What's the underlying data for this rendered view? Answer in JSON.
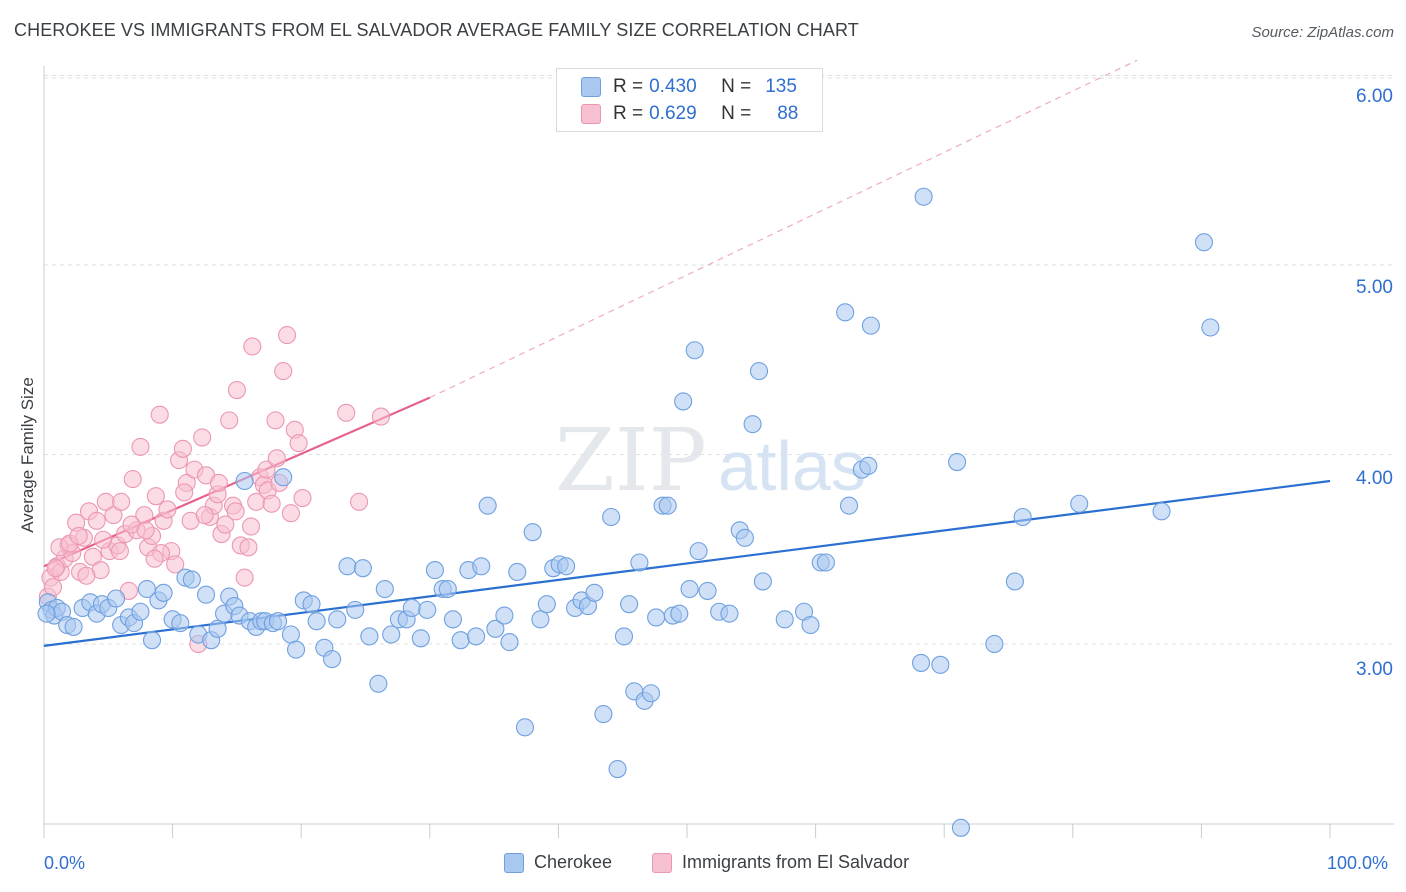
{
  "header": {
    "title": "CHEROKEE VS IMMIGRANTS FROM EL SALVADOR AVERAGE FAMILY SIZE CORRELATION CHART",
    "source": "Source: ZipAtlas.com"
  },
  "watermark": {
    "zip": "ZIP",
    "atlas": "atlas"
  },
  "legend_top": {
    "rows": [
      {
        "r_label": "R =",
        "r_value": "0.430",
        "n_label": "N =",
        "n_value": "135"
      },
      {
        "r_label": "R =",
        "r_value": "0.629",
        "n_label": "N =",
        "n_value": "88"
      }
    ]
  },
  "chart_data": {
    "type": "scatter",
    "title": "CHEROKEE VS IMMIGRANTS FROM EL SALVADOR AVERAGE FAMILY SIZE CORRELATION CHART",
    "xlabel": "",
    "ylabel": "Average Family Size",
    "xlim": [
      0,
      100
    ],
    "ylim": [
      2.05,
      6.05
    ],
    "x_tick_labels": [
      "0.0%",
      "100.0%"
    ],
    "y_ticks": [
      3.0,
      4.0,
      5.0,
      6.0
    ],
    "y_tick_labels": [
      "3.00",
      "4.00",
      "5.00",
      "6.00"
    ],
    "grid": true,
    "legend_position": "bottom",
    "colors": {
      "cherokee_fill": "#a9c8f0",
      "cherokee_stroke": "#6fa0e0",
      "cherokee_line": "#2a6fd1",
      "salvador_fill": "#f7c0d0",
      "salvador_stroke": "#ec97b2",
      "salvador_line": "#e6628c",
      "tick_text": "#2f6fcf",
      "grid": "#dcdfe3"
    },
    "series": [
      {
        "name": "Cherokee",
        "r": 0.43,
        "n": 135,
        "trend": {
          "x": [
            0,
            100
          ],
          "y": [
            2.99,
            3.86
          ]
        },
        "points": [
          [
            0.3,
            3.22
          ],
          [
            0.6,
            3.18
          ],
          [
            0.8,
            3.15
          ],
          [
            1.0,
            3.19
          ],
          [
            1.4,
            3.17
          ],
          [
            1.8,
            3.1
          ],
          [
            2.3,
            3.09
          ],
          [
            3.0,
            3.19
          ],
          [
            3.6,
            3.22
          ],
          [
            4.1,
            3.16
          ],
          [
            4.5,
            3.21
          ],
          [
            5.0,
            3.19
          ],
          [
            5.6,
            3.24
          ],
          [
            6.0,
            3.1
          ],
          [
            6.6,
            3.14
          ],
          [
            7.0,
            3.11
          ],
          [
            7.5,
            3.17
          ],
          [
            8.0,
            3.29
          ],
          [
            8.4,
            3.02
          ],
          [
            8.9,
            3.23
          ],
          [
            9.3,
            3.27
          ],
          [
            10.0,
            3.13
          ],
          [
            10.6,
            3.11
          ],
          [
            11.0,
            3.35
          ],
          [
            11.5,
            3.34
          ],
          [
            12.0,
            3.05
          ],
          [
            12.6,
            3.26
          ],
          [
            13.0,
            3.02
          ],
          [
            13.5,
            3.08
          ],
          [
            14.0,
            3.16
          ],
          [
            14.4,
            3.25
          ],
          [
            14.8,
            3.2
          ],
          [
            15.2,
            3.15
          ],
          [
            15.6,
            3.86
          ],
          [
            16.0,
            3.12
          ],
          [
            16.5,
            3.09
          ],
          [
            16.9,
            3.12
          ],
          [
            17.2,
            3.12
          ],
          [
            17.8,
            3.11
          ],
          [
            18.2,
            3.12
          ],
          [
            18.6,
            3.88
          ],
          [
            19.2,
            3.05
          ],
          [
            19.6,
            2.97
          ],
          [
            20.2,
            3.23
          ],
          [
            20.8,
            3.21
          ],
          [
            21.2,
            3.12
          ],
          [
            21.8,
            2.98
          ],
          [
            22.4,
            2.92
          ],
          [
            22.8,
            3.13
          ],
          [
            23.6,
            3.41
          ],
          [
            24.2,
            3.18
          ],
          [
            24.8,
            3.4
          ],
          [
            25.3,
            3.04
          ],
          [
            26.0,
            2.79
          ],
          [
            26.5,
            3.29
          ],
          [
            27.0,
            3.05
          ],
          [
            27.6,
            3.13
          ],
          [
            28.2,
            3.13
          ],
          [
            28.6,
            3.19
          ],
          [
            29.3,
            3.03
          ],
          [
            29.8,
            3.18
          ],
          [
            30.4,
            3.39
          ],
          [
            31.0,
            3.29
          ],
          [
            31.4,
            3.29
          ],
          [
            31.8,
            3.13
          ],
          [
            32.4,
            3.02
          ],
          [
            33.0,
            3.39
          ],
          [
            33.6,
            3.04
          ],
          [
            34.0,
            3.41
          ],
          [
            34.5,
            3.73
          ],
          [
            35.1,
            3.08
          ],
          [
            35.8,
            3.15
          ],
          [
            36.2,
            3.01
          ],
          [
            36.8,
            3.38
          ],
          [
            37.4,
            2.56
          ],
          [
            38.0,
            3.59
          ],
          [
            38.6,
            3.13
          ],
          [
            39.1,
            3.21
          ],
          [
            39.6,
            3.4
          ],
          [
            40.1,
            3.42
          ],
          [
            40.6,
            3.41
          ],
          [
            41.3,
            3.19
          ],
          [
            41.8,
            3.23
          ],
          [
            42.3,
            3.2
          ],
          [
            42.8,
            3.27
          ],
          [
            43.5,
            2.63
          ],
          [
            44.1,
            3.67
          ],
          [
            44.6,
            2.34
          ],
          [
            45.1,
            3.04
          ],
          [
            45.5,
            3.21
          ],
          [
            45.9,
            2.75
          ],
          [
            46.3,
            3.43
          ],
          [
            46.7,
            2.7
          ],
          [
            47.2,
            2.74
          ],
          [
            47.6,
            3.14
          ],
          [
            48.1,
            3.73
          ],
          [
            48.5,
            3.73
          ],
          [
            48.9,
            3.15
          ],
          [
            49.4,
            3.16
          ],
          [
            49.7,
            4.28
          ],
          [
            50.2,
            3.29
          ],
          [
            50.6,
            4.55
          ],
          [
            50.9,
            3.49
          ],
          [
            51.6,
            3.28
          ],
          [
            52.5,
            3.17
          ],
          [
            53.3,
            3.16
          ],
          [
            54.1,
            3.6
          ],
          [
            54.5,
            3.56
          ],
          [
            55.1,
            4.16
          ],
          [
            55.6,
            4.44
          ],
          [
            55.9,
            3.33
          ],
          [
            57.6,
            3.13
          ],
          [
            59.1,
            3.17
          ],
          [
            59.6,
            3.1
          ],
          [
            60.4,
            3.43
          ],
          [
            60.8,
            3.43
          ],
          [
            62.3,
            4.75
          ],
          [
            62.6,
            3.73
          ],
          [
            63.6,
            3.92
          ],
          [
            64.1,
            3.94
          ],
          [
            64.3,
            4.68
          ],
          [
            68.4,
            5.36
          ],
          [
            69.7,
            2.89
          ],
          [
            71.0,
            3.96
          ],
          [
            73.9,
            3.0
          ],
          [
            75.5,
            3.33
          ],
          [
            76.1,
            3.67
          ],
          [
            80.5,
            3.74
          ],
          [
            86.9,
            3.7
          ],
          [
            90.2,
            5.12
          ],
          [
            90.7,
            4.67
          ],
          [
            0.2,
            3.16
          ],
          [
            71.3,
            2.03
          ],
          [
            68.2,
            2.9
          ]
        ]
      },
      {
        "name": "Immigrants from El Salvador",
        "r": 0.629,
        "n": 88,
        "trend": {
          "x": [
            0,
            30
          ],
          "y": [
            3.41,
            4.3
          ]
        },
        "trend_dashed": {
          "x": [
            30,
            85
          ],
          "y": [
            4.3,
            6.08
          ]
        },
        "points": [
          [
            0.3,
            3.25
          ],
          [
            0.5,
            3.35
          ],
          [
            0.7,
            3.3
          ],
          [
            1.0,
            3.41
          ],
          [
            1.3,
            3.38
          ],
          [
            1.6,
            3.45
          ],
          [
            1.9,
            3.52
          ],
          [
            2.2,
            3.48
          ],
          [
            2.5,
            3.64
          ],
          [
            2.8,
            3.38
          ],
          [
            3.1,
            3.56
          ],
          [
            3.5,
            3.7
          ],
          [
            3.8,
            3.46
          ],
          [
            4.1,
            3.65
          ],
          [
            4.4,
            3.39
          ],
          [
            4.8,
            3.75
          ],
          [
            5.1,
            3.49
          ],
          [
            5.4,
            3.68
          ],
          [
            5.7,
            3.52
          ],
          [
            6.0,
            3.75
          ],
          [
            6.3,
            3.58
          ],
          [
            6.6,
            3.28
          ],
          [
            6.9,
            3.87
          ],
          [
            7.2,
            3.6
          ],
          [
            7.5,
            4.04
          ],
          [
            7.8,
            3.68
          ],
          [
            8.1,
            3.51
          ],
          [
            8.4,
            3.57
          ],
          [
            8.7,
            3.78
          ],
          [
            9.0,
            4.21
          ],
          [
            9.3,
            3.65
          ],
          [
            9.6,
            3.71
          ],
          [
            9.9,
            3.49
          ],
          [
            10.2,
            3.42
          ],
          [
            10.5,
            3.97
          ],
          [
            10.8,
            4.03
          ],
          [
            11.1,
            3.85
          ],
          [
            11.4,
            3.65
          ],
          [
            11.7,
            3.92
          ],
          [
            12.0,
            3.0
          ],
          [
            12.3,
            4.09
          ],
          [
            12.6,
            3.89
          ],
          [
            12.9,
            3.67
          ],
          [
            13.2,
            3.73
          ],
          [
            13.5,
            3.79
          ],
          [
            13.8,
            3.58
          ],
          [
            14.1,
            3.63
          ],
          [
            14.4,
            4.18
          ],
          [
            14.7,
            3.73
          ],
          [
            15.0,
            4.34
          ],
          [
            15.3,
            3.52
          ],
          [
            15.6,
            3.35
          ],
          [
            15.9,
            3.51
          ],
          [
            16.2,
            4.57
          ],
          [
            16.5,
            3.75
          ],
          [
            16.8,
            3.88
          ],
          [
            17.1,
            3.84
          ],
          [
            17.4,
            3.81
          ],
          [
            17.7,
            3.74
          ],
          [
            18.0,
            4.18
          ],
          [
            18.3,
            3.85
          ],
          [
            18.6,
            4.44
          ],
          [
            18.9,
            4.63
          ],
          [
            19.2,
            3.69
          ],
          [
            19.5,
            4.13
          ],
          [
            19.8,
            4.06
          ],
          [
            20.1,
            3.77
          ],
          [
            23.5,
            4.22
          ],
          [
            24.5,
            3.75
          ],
          [
            26.2,
            4.2
          ],
          [
            1.2,
            3.51
          ],
          [
            2.0,
            3.53
          ],
          [
            3.3,
            3.36
          ],
          [
            4.6,
            3.55
          ],
          [
            5.9,
            3.49
          ],
          [
            6.8,
            3.63
          ],
          [
            7.9,
            3.6
          ],
          [
            9.1,
            3.48
          ],
          [
            10.9,
            3.8
          ],
          [
            12.5,
            3.68
          ],
          [
            13.6,
            3.85
          ],
          [
            14.9,
            3.7
          ],
          [
            16.1,
            3.62
          ],
          [
            17.3,
            3.92
          ],
          [
            18.1,
            3.98
          ],
          [
            0.9,
            3.4
          ],
          [
            2.7,
            3.57
          ],
          [
            8.6,
            3.45
          ]
        ]
      }
    ]
  },
  "legend_bottom": {
    "items": [
      {
        "label": "Cherokee"
      },
      {
        "label": "Immigrants from El Salvador"
      }
    ]
  }
}
